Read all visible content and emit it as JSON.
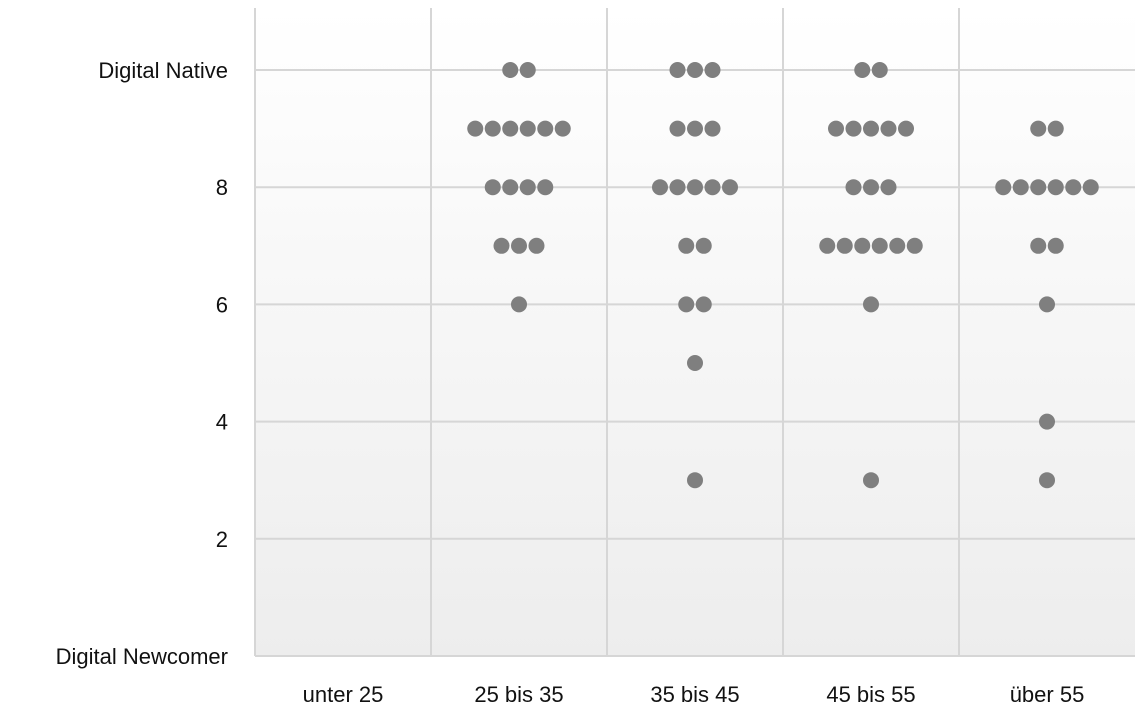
{
  "chart_data": {
    "type": "scatter",
    "subtype": "dot-plot",
    "title": "",
    "xlabel": "",
    "ylabel": "",
    "categories": [
      "unter 25",
      "25 bis 35",
      "35 bis 45",
      "45 bis 55",
      "über 55"
    ],
    "ylim": [
      0,
      10
    ],
    "y_ticks": [
      {
        "value": 10,
        "label": "Digital Native"
      },
      {
        "value": 8,
        "label": "8"
      },
      {
        "value": 6,
        "label": "6"
      },
      {
        "value": 4,
        "label": "4"
      },
      {
        "value": 2,
        "label": "2"
      },
      {
        "value": 0,
        "label": "Digital Newcomer"
      }
    ],
    "grid": true,
    "background": "light gray vertical gradient",
    "dot_color": "#7f7f7f",
    "series": [
      {
        "category": "unter 25",
        "counts": []
      },
      {
        "category": "25 bis 35",
        "counts": [
          {
            "y": 10,
            "n": 2
          },
          {
            "y": 9,
            "n": 6
          },
          {
            "y": 8,
            "n": 4
          },
          {
            "y": 7,
            "n": 3
          },
          {
            "y": 6,
            "n": 1
          }
        ]
      },
      {
        "category": "35 bis 45",
        "counts": [
          {
            "y": 10,
            "n": 3
          },
          {
            "y": 9,
            "n": 3
          },
          {
            "y": 8,
            "n": 5
          },
          {
            "y": 7,
            "n": 2
          },
          {
            "y": 6,
            "n": 2
          },
          {
            "y": 5,
            "n": 1
          },
          {
            "y": 3,
            "n": 1
          }
        ]
      },
      {
        "category": "45 bis 55",
        "counts": [
          {
            "y": 10,
            "n": 2
          },
          {
            "y": 9,
            "n": 5
          },
          {
            "y": 8,
            "n": 3
          },
          {
            "y": 7,
            "n": 6
          },
          {
            "y": 6,
            "n": 1
          },
          {
            "y": 3,
            "n": 1
          }
        ]
      },
      {
        "category": "über 55",
        "counts": [
          {
            "y": 9,
            "n": 2
          },
          {
            "y": 8,
            "n": 6
          },
          {
            "y": 7,
            "n": 2
          },
          {
            "y": 6,
            "n": 1
          },
          {
            "y": 4,
            "n": 1
          },
          {
            "y": 3,
            "n": 1
          }
        ]
      }
    ]
  }
}
